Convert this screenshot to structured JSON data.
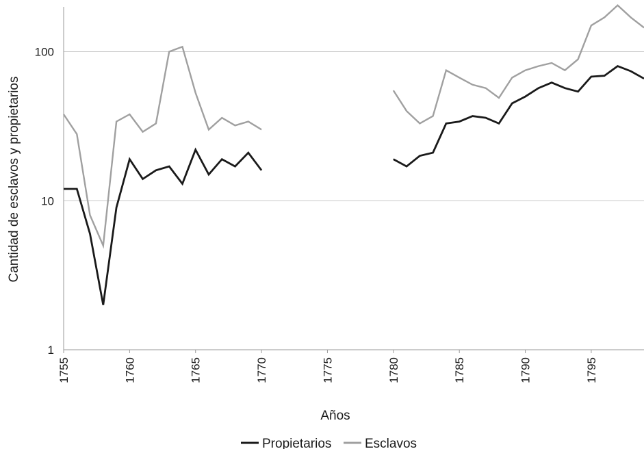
{
  "chart_data": {
    "type": "line",
    "title": "",
    "xlabel": "Años",
    "ylabel": "Cantidad de esclavos y propietarios",
    "y_scale": "log",
    "ylim": [
      1,
      200
    ],
    "y_ticks": [
      "1",
      "10",
      "100"
    ],
    "xlim": [
      1755,
      1799
    ],
    "x_ticks": [
      "1755",
      "1760",
      "1765",
      "1770",
      "1775",
      "1780",
      "1785",
      "1790",
      "1795"
    ],
    "grid": "horizontal",
    "legend_position": "bottom",
    "x": [
      1755,
      1756,
      1757,
      1758,
      1759,
      1760,
      1761,
      1762,
      1763,
      1764,
      1765,
      1766,
      1767,
      1768,
      1769,
      1770,
      1771,
      1772,
      1773,
      1774,
      1775,
      1776,
      1777,
      1778,
      1779,
      1780,
      1781,
      1782,
      1783,
      1784,
      1785,
      1786,
      1787,
      1788,
      1789,
      1790,
      1791,
      1792,
      1793,
      1794,
      1795,
      1796,
      1797,
      1798,
      1799
    ],
    "series": [
      {
        "name": "Propietarios",
        "color": "#1a1a1a",
        "values": [
          12,
          12,
          6,
          2,
          9,
          19,
          14,
          16,
          17,
          13,
          22,
          15,
          19,
          17,
          21,
          16,
          null,
          null,
          null,
          null,
          null,
          null,
          null,
          null,
          null,
          19,
          17,
          20,
          21,
          33,
          34,
          37,
          36,
          33,
          45,
          50,
          57,
          62,
          57,
          54,
          68,
          69,
          80,
          74,
          66
        ]
      },
      {
        "name": "Esclavos",
        "color": "#a0a0a0",
        "values": [
          38,
          28,
          8,
          5,
          34,
          38,
          29,
          33,
          100,
          108,
          53,
          30,
          36,
          32,
          34,
          30,
          null,
          null,
          null,
          null,
          null,
          null,
          null,
          null,
          null,
          55,
          40,
          33,
          37,
          75,
          67,
          60,
          57,
          49,
          67,
          75,
          80,
          84,
          75,
          89,
          150,
          170,
          205,
          170,
          145
        ]
      }
    ]
  }
}
